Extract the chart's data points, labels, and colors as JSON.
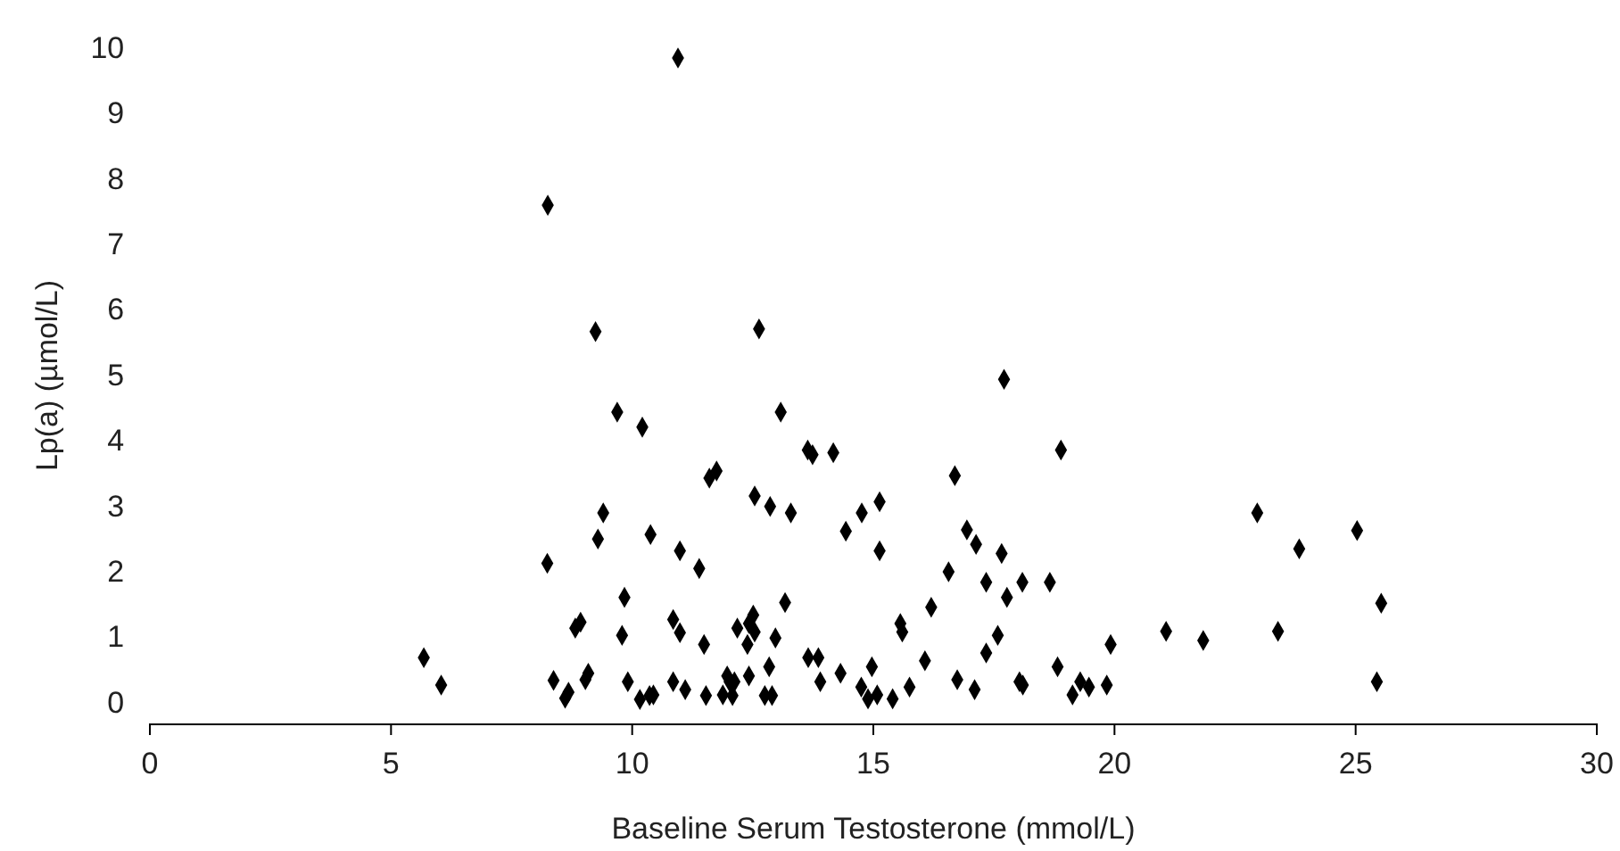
{
  "chart_data": {
    "type": "scatter",
    "xlabel": "Baseline Serum Testosterone (mmol/L)",
    "ylabel": "Lp(a) (µmol/L)",
    "xlim": [
      0,
      30
    ],
    "xticks": [
      0,
      5,
      10,
      15,
      20,
      25,
      30
    ],
    "ylim": [
      -0.33,
      10
    ],
    "yticks": [
      0,
      1,
      2,
      3,
      4,
      5,
      6,
      7,
      8,
      9,
      10
    ],
    "grid": false,
    "marker": "diamond",
    "series": [
      {
        "color": "#000000",
        "x": [
          5.68,
          6.04,
          8.25,
          8.24,
          10.95,
          9.24,
          12.63,
          9.69,
          10.21,
          13.08,
          11.6,
          11.75,
          12.54,
          12.86,
          9.4,
          9.29,
          10.38,
          10.99,
          11.39,
          9.84,
          8.82,
          8.93,
          9.79,
          10.85,
          10.99,
          11.49,
          12.18,
          12.42,
          12.51,
          12.54,
          12.39,
          12.97,
          13.17,
          8.37,
          8.61,
          8.68,
          9.03,
          9.09,
          9.91,
          10.16,
          10.36,
          10.44,
          10.85,
          11.1,
          11.53,
          11.88,
          11.97,
          12.02,
          12.12,
          12.08,
          12.42,
          12.84,
          12.75,
          12.9,
          17.71,
          13.64,
          13.74,
          14.17,
          18.89,
          16.69,
          13.29,
          14.76,
          15.13,
          14.43,
          15.13,
          16.94,
          17.13,
          17.66,
          16.56,
          17.34,
          18.09,
          18.66,
          17.77,
          16.2,
          15.56,
          15.6,
          17.58,
          17.34,
          16.07,
          13.65,
          13.86,
          13.9,
          14.32,
          14.97,
          14.75,
          14.89,
          15.08,
          15.4,
          15.75,
          16.74,
          17.1,
          18.03,
          18.1,
          18.82,
          19.13,
          19.29,
          19.47,
          19.84,
          19.92,
          21.07,
          21.84,
          22.96,
          23.83,
          23.39,
          25.03,
          25.53,
          25.44
        ],
        "values": [
          0.69,
          0.27,
          7.6,
          2.13,
          9.85,
          5.67,
          5.71,
          4.44,
          4.21,
          4.44,
          3.43,
          3.54,
          3.16,
          3.0,
          2.9,
          2.5,
          2.57,
          2.32,
          2.05,
          1.61,
          1.14,
          1.23,
          1.03,
          1.27,
          1.07,
          0.89,
          1.14,
          1.21,
          1.34,
          1.08,
          0.89,
          0.99,
          1.53,
          0.34,
          0.07,
          0.16,
          0.35,
          0.45,
          0.32,
          0.05,
          0.11,
          0.12,
          0.32,
          0.2,
          0.11,
          0.12,
          0.41,
          0.32,
          0.32,
          0.11,
          0.41,
          0.55,
          0.11,
          0.11,
          4.94,
          3.86,
          3.79,
          3.82,
          3.86,
          3.47,
          2.9,
          2.9,
          3.07,
          2.62,
          2.32,
          2.64,
          2.42,
          2.28,
          2.0,
          1.84,
          1.84,
          1.84,
          1.61,
          1.46,
          1.21,
          1.08,
          1.03,
          0.76,
          0.64,
          0.69,
          0.69,
          0.32,
          0.45,
          0.55,
          0.24,
          0.06,
          0.12,
          0.06,
          0.24,
          0.35,
          0.2,
          0.32,
          0.27,
          0.55,
          0.12,
          0.32,
          0.24,
          0.27,
          0.89,
          1.09,
          0.95,
          2.9,
          2.35,
          1.09,
          2.63,
          1.52,
          0.32
        ]
      }
    ]
  }
}
